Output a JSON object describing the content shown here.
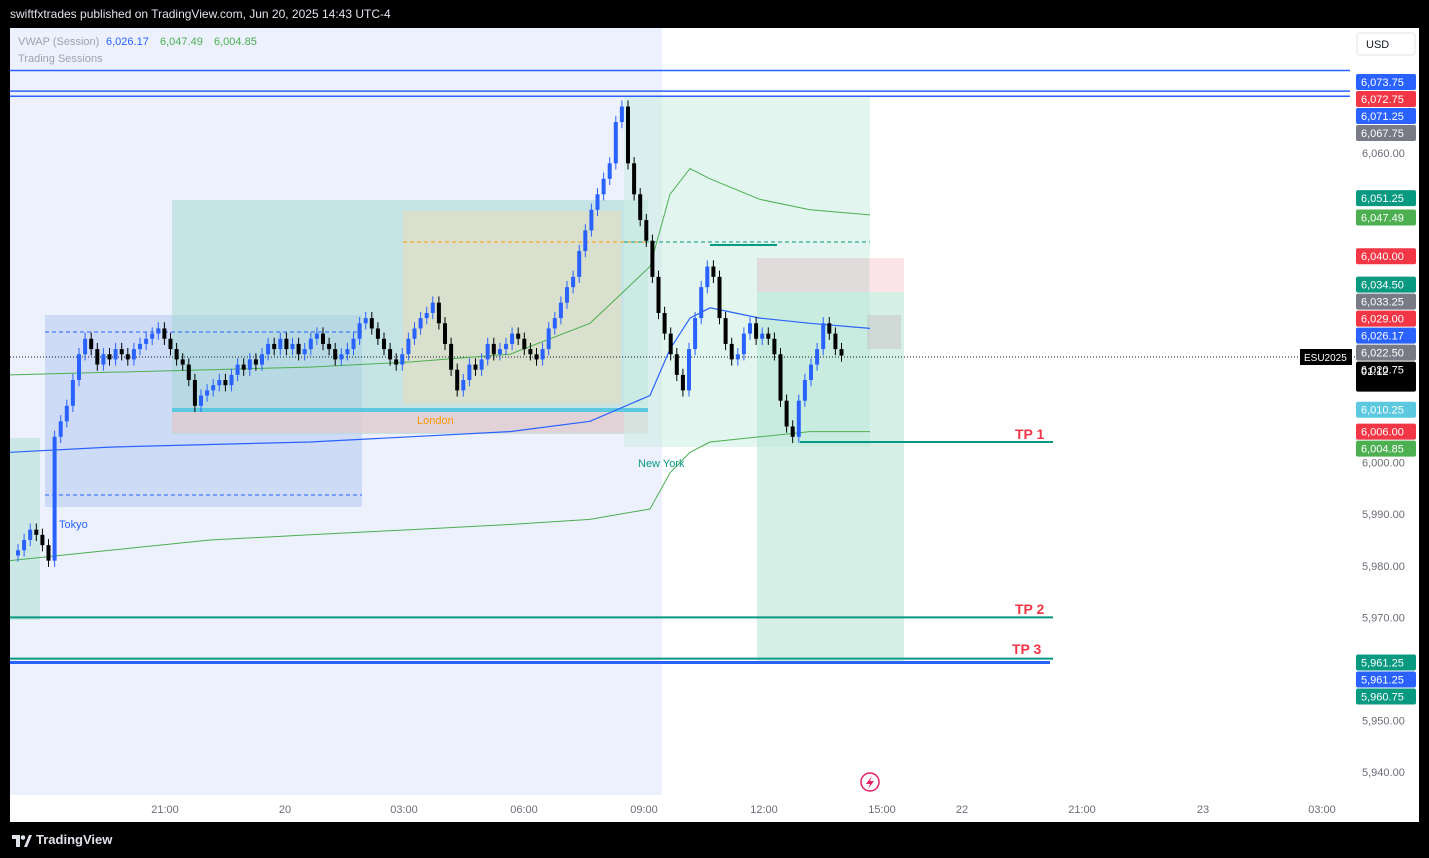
{
  "header": {
    "publisher": "swiftfxtrades published on TradingView.com, Jun 20, 2025 14:43 UTC-4"
  },
  "footer": {
    "brand": "TradingView",
    "logo_icon": "tradingview-logo-icon"
  },
  "legend": {
    "vwap_label": "VWAP (Session)",
    "vwap_values": [
      "6,026.17",
      "6,047.49",
      "6,004.85"
    ],
    "vwap_colors": [
      "#2962ff",
      "#4caf50",
      "#4caf50"
    ],
    "sessions_label": "Trading Sessions"
  },
  "currency": "USD",
  "symbol": "ESU2025",
  "colors": {
    "up": "#2962ff",
    "down": "#000000",
    "vwap": "#2962ff",
    "band": "#4caf50",
    "tp_line": "#089981",
    "tp_text": "#f23645",
    "blue_line": "#2962ff"
  },
  "chart_data": {
    "type": "candlestick",
    "y_ticks": [
      "6,060.00",
      "6,000.00",
      "5,990.00",
      "5,980.00",
      "5,970.00",
      "5,950.00",
      "5,940.00"
    ],
    "x_ticks": [
      "21:00",
      "20",
      "03:00",
      "06:00",
      "09:00",
      "12:00",
      "15:00",
      "22",
      "21:00",
      "23",
      "03:00"
    ],
    "ylim": [
      5935,
      6080
    ],
    "session_labels": [
      "Tokyo",
      "London",
      "New York"
    ],
    "annotations": [
      "TP 1",
      "TP 2",
      "TP 3"
    ],
    "tp_levels": [
      6004.0,
      5970.0,
      5962.0
    ],
    "horizontal_lines": [
      6076.0,
      6072.0,
      6071.0,
      5961.25
    ],
    "price_labels": [
      {
        "text": "6,073.75",
        "bg": "#2962ff",
        "value": 6073.75
      },
      {
        "text": "6,072.75",
        "bg": "#f23645",
        "value": 6072.75
      },
      {
        "text": "6,071.25",
        "bg": "#2962ff",
        "value": 6071.25
      },
      {
        "text": "6,067.75",
        "bg": "#787b86",
        "value": 6067.75
      },
      {
        "text": "6,051.25",
        "bg": "#089981",
        "value": 6051.25
      },
      {
        "text": "6,047.49",
        "bg": "#4caf50",
        "value": 6047.49
      },
      {
        "text": "6,040.00",
        "bg": "#f23645",
        "value": 6040.0
      },
      {
        "text": "6,034.50",
        "bg": "#089981",
        "value": 6034.5
      },
      {
        "text": "6,033.25",
        "bg": "#787b86",
        "value": 6033.25
      },
      {
        "text": "6,029.00",
        "bg": "#f23645",
        "value": 6029.0
      },
      {
        "text": "6,026.17",
        "bg": "#2962ff",
        "value": 6026.17
      },
      {
        "text": "6,022.50",
        "bg": "#787b86",
        "value": 6022.5
      },
      {
        "text": "6,020.75",
        "bg": "#000000",
        "value": 6020.75
      },
      {
        "text": "6,010.25",
        "bg": "#5cc9e0",
        "value": 6010.25
      },
      {
        "text": "6,006.00",
        "bg": "#f23645",
        "value": 6006.0
      },
      {
        "text": "6,004.85",
        "bg": "#4caf50",
        "value": 6004.85
      },
      {
        "text": "5,961.25",
        "bg": "#089981",
        "value": 5961.25
      },
      {
        "text": "5,961.25",
        "bg": "#2962ff",
        "value": 5961.25
      },
      {
        "text": "5,960.75",
        "bg": "#089981",
        "value": 5960.75
      }
    ],
    "countdown": "01:12",
    "last_price": 6020.75,
    "candles_close": [
      5983,
      5985,
      5987,
      5986,
      5984,
      5981,
      6005,
      6008,
      6011,
      6016,
      6021,
      6024,
      6022,
      6019,
      6021,
      6020,
      6022,
      6021,
      6020,
      6022,
      6023,
      6024,
      6025,
      6026,
      6024,
      6022,
      6020,
      6019,
      6016,
      6011,
      6013,
      6014,
      6015,
      6016,
      6015,
      6017,
      6019,
      6018,
      6020,
      6019,
      6021,
      6023,
      6022,
      6024,
      6022,
      6023,
      6021,
      6022,
      6024,
      6025,
      6023,
      6022,
      6020,
      6021,
      6022,
      6024,
      6027,
      6028,
      6026,
      6024,
      6022,
      6020,
      6019,
      6021,
      6024,
      6026,
      6028,
      6029,
      6031,
      6027,
      6023,
      6018,
      6014,
      6016,
      6019,
      6018,
      6020,
      6023,
      6021,
      6022,
      6023,
      6025,
      6024,
      6022,
      6021,
      6020,
      6022,
      6026,
      6028,
      6031,
      6034,
      6036,
      6041,
      6045,
      6049,
      6052,
      6055,
      6058,
      6066,
      6069,
      6058,
      6052,
      6047,
      6043,
      6036,
      6029,
      6025,
      6021,
      6017,
      6014,
      6022,
      6028,
      6034,
      6038,
      6036,
      6028,
      6023,
      6020,
      6021,
      6025,
      6027,
      6024,
      6025,
      6024,
      6021,
      6012,
      6007,
      6005,
      6012,
      6016,
      6019,
      6022,
      6027,
      6025,
      6022,
      6020.75
    ]
  }
}
